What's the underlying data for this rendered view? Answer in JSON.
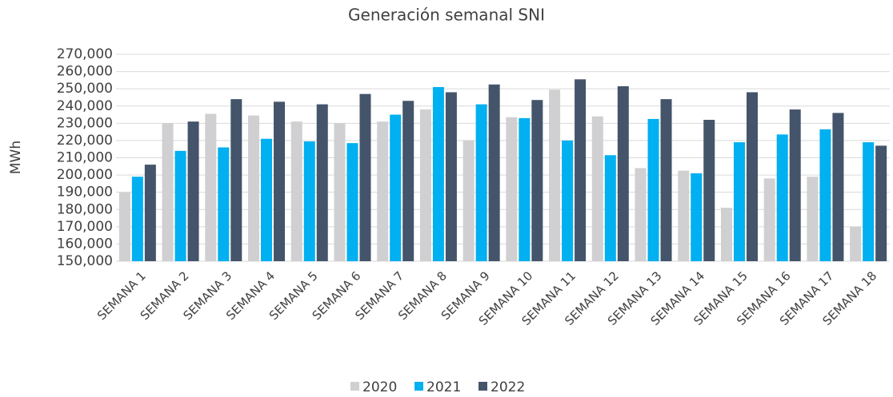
{
  "chart_data": {
    "type": "bar",
    "title": "Generación semanal SNI",
    "y_label": "MWh",
    "categories": [
      "SEMANA 1",
      "SEMANA 2",
      "SEMANA 3",
      "SEMANA 4",
      "SEMANA 5",
      "SEMANA 6",
      "SEMANA 7",
      "SEMANA 8",
      "SEMANA 9",
      "SEMANA 10",
      "SEMANA 11",
      "SEMANA 12",
      "SEMANA 13",
      "SEMANA 14",
      "SEMANA 15",
      "SEMANA 16",
      "SEMANA 17",
      "SEMANA 18"
    ],
    "series": [
      {
        "name": "2020",
        "color": "#d0cfd1",
        "values": [
          190000,
          230000,
          235500,
          234500,
          231000,
          230000,
          231000,
          238000,
          220000,
          233500,
          249500,
          234000,
          204000,
          202500,
          181000,
          198000,
          199000,
          170000
        ]
      },
      {
        "name": "2021",
        "color": "#00b0f0",
        "values": [
          199000,
          214000,
          216000,
          221000,
          219500,
          218500,
          235000,
          251000,
          241000,
          233000,
          220000,
          211500,
          232500,
          201000,
          219000,
          223500,
          226500,
          219000
        ]
      },
      {
        "name": "2022",
        "color": "#44546a",
        "values": [
          206000,
          231000,
          244000,
          242500,
          241000,
          247000,
          243000,
          248000,
          252500,
          243500,
          255500,
          251500,
          244000,
          232000,
          248000,
          238000,
          236000,
          217000
        ]
      }
    ],
    "ylim": [
      150000,
      270000
    ],
    "yticks": [
      {
        "value": 150000,
        "label": "150,000"
      },
      {
        "value": 160000,
        "label": "160,000"
      },
      {
        "value": 170000,
        "label": "170,000"
      },
      {
        "value": 180000,
        "label": "180,000"
      },
      {
        "value": 190000,
        "label": "190,000"
      },
      {
        "value": 200000,
        "label": "200,000"
      },
      {
        "value": 210000,
        "label": "210,000"
      },
      {
        "value": 220000,
        "label": "220,000"
      },
      {
        "value": 230000,
        "label": "230,000"
      },
      {
        "value": 240000,
        "label": "240,000"
      },
      {
        "value": 250000,
        "label": "250,000"
      },
      {
        "value": 260000,
        "label": "260,000"
      },
      {
        "value": 270000,
        "label": "270,000"
      }
    ],
    "grid": true,
    "legend": "bottom"
  }
}
